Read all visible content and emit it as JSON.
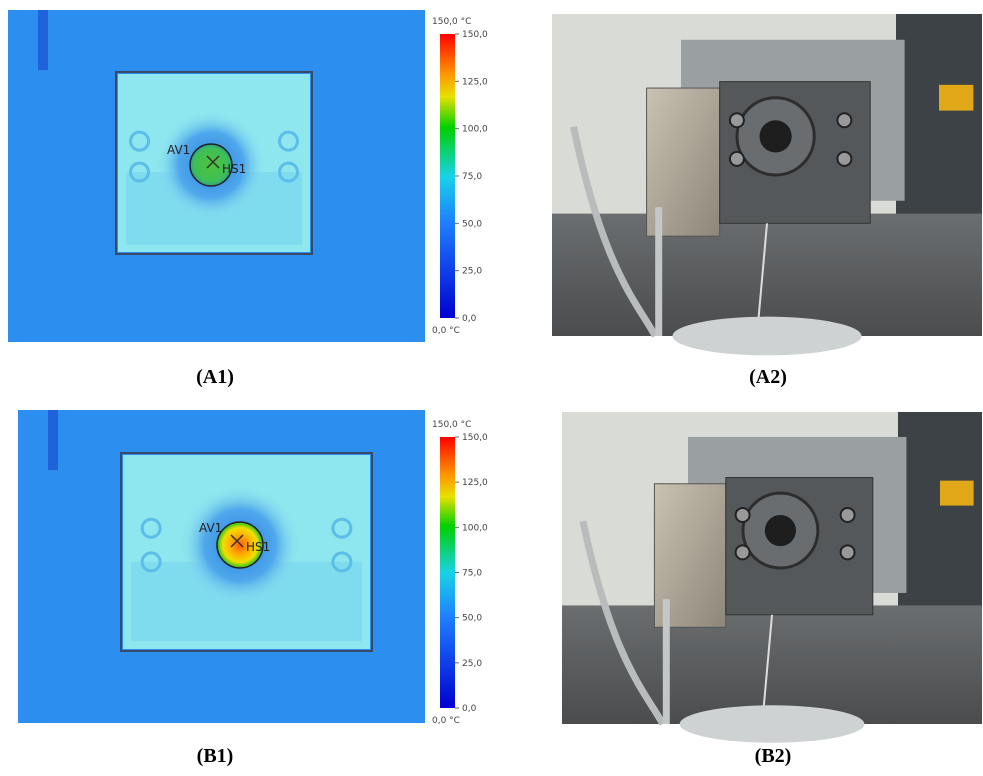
{
  "panels": [
    {
      "caption": "(A1)",
      "colorbar": {
        "top_label": "150,0 °C",
        "bottom_label": "0,0 °C",
        "ticks": [
          "150,0",
          "125,0",
          "100,0",
          "75,0",
          "50,0",
          "25,0",
          "0,0"
        ]
      },
      "markers": [
        "AV1",
        "HS1"
      ]
    },
    {
      "caption": "(A2)"
    },
    {
      "caption": "(B1)",
      "colorbar": {
        "top_label": "150,0 °C",
        "bottom_label": "0,0 °C",
        "ticks": [
          "150,0",
          "125,0",
          "100,0",
          "75,0",
          "50,0",
          "25,0",
          "0,0"
        ]
      },
      "markers": [
        "AV1",
        "HS1"
      ]
    },
    {
      "caption": "(B2)"
    }
  ]
}
